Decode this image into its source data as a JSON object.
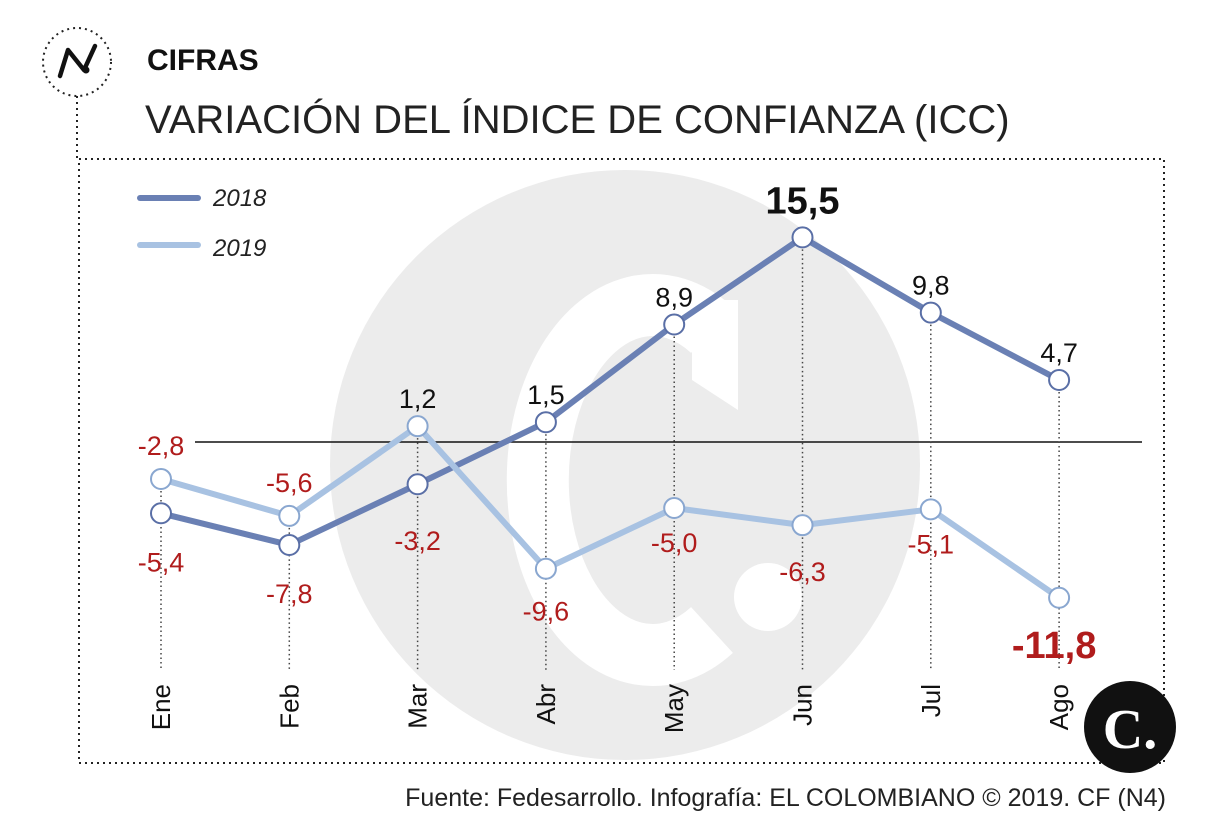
{
  "header": {
    "kicker": "CIFRAS",
    "title": "VARIACIÓN DEL ÍNDICE DE CONFIANZA (ICC)",
    "icon": "trend-line-icon"
  },
  "colors": {
    "series_2018": "#6a80b4",
    "series_2019": "#a8c2e2",
    "negative_label": "#b01c1c",
    "watermark": "#ececec"
  },
  "chart_data": {
    "type": "line",
    "categories": [
      "Ene",
      "Feb",
      "Mar",
      "Abr",
      "May",
      "Jun",
      "Jul",
      "Ago"
    ],
    "series": [
      {
        "name": "2018",
        "values": [
          -5.4,
          -7.8,
          -3.2,
          1.5,
          8.9,
          15.5,
          9.8,
          4.7
        ],
        "labels": [
          "-5,4",
          "-7,8",
          "-3,2",
          "1,5",
          "8,9",
          "15,5",
          "9,8",
          "4,7"
        ]
      },
      {
        "name": "2019",
        "values": [
          -2.8,
          -5.6,
          1.2,
          -9.6,
          -5.0,
          -6.3,
          -5.1,
          -11.8
        ],
        "labels": [
          "-2,8",
          "-5,6",
          "1,2",
          "-9,6",
          "-5,0",
          "-6,3",
          "-5,1",
          "-11,8"
        ]
      }
    ],
    "title": "VARIACIÓN DEL ÍNDICE DE CONFIANZA (ICC)",
    "xlabel": "",
    "ylabel": "",
    "ylim": [
      -15,
      18
    ],
    "grid": false,
    "legend": "top-left",
    "highlight": {
      "max": "15,5",
      "min": "-11,8"
    }
  },
  "footer": {
    "source": "Fuente: Fedesarrollo. Infografía: EL COLOMBIANO © 2019. CF (N4)"
  },
  "brand": {
    "logo_letter": "C."
  }
}
